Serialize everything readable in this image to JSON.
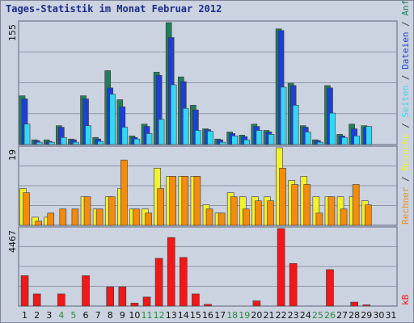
{
  "chart_data": {
    "type": "bar",
    "title": "Tages-Statistik im Monat Februar 2012",
    "categories": [
      "1",
      "2",
      "3",
      "4",
      "5",
      "6",
      "7",
      "8",
      "9",
      "10",
      "11",
      "12",
      "13",
      "14",
      "15",
      "16",
      "17",
      "18",
      "19",
      "20",
      "21",
      "22",
      "23",
      "24",
      "25",
      "26",
      "27",
      "28",
      "29",
      "30",
      "31"
    ],
    "weekend_days": [
      "4",
      "5",
      "11",
      "12",
      "18",
      "19",
      "25",
      "26"
    ],
    "panels": [
      {
        "name": "requests",
        "ymax_label": "155",
        "ylim": [
          0,
          155
        ],
        "series": [
          {
            "name": "Anfragen",
            "color": "#1e7f5c",
            "values": [
              62,
              6,
              6,
              24,
              7,
              62,
              9,
              94,
              57,
              11,
              26,
              92,
              155,
              86,
              50,
              20,
              7,
              16,
              12,
              26,
              18,
              147,
              78,
              24,
              6,
              75,
              13,
              26,
              24,
              0,
              0
            ]
          },
          {
            "name": "Dateien",
            "color": "#1c3fd6",
            "values": [
              58,
              5,
              4,
              22,
              6,
              58,
              7,
              72,
              48,
              9,
              23,
              88,
              136,
              80,
              44,
              19,
              6,
              14,
              10,
              23,
              16,
              145,
              75,
              22,
              5,
              72,
              11,
              20,
              22,
              0,
              0
            ]
          },
          {
            "name": "Seiten",
            "color": "#33d6f5",
            "values": [
              26,
              3,
              3,
              9,
              3,
              24,
              4,
              64,
              22,
              7,
              14,
              32,
              76,
              46,
              18,
              17,
              3,
              11,
              6,
              18,
              13,
              73,
              50,
              16,
              3,
              40,
              9,
              11,
              23,
              0,
              0
            ]
          }
        ]
      },
      {
        "name": "visits",
        "ymax_label": "19",
        "ylim": [
          0,
          19
        ],
        "series": [
          {
            "name": "Besuche",
            "color": "#f2f22a",
            "values": [
              9,
              2,
              2,
              0,
              0,
              7,
              4,
              7,
              9,
              4,
              4,
              14,
              12,
              12,
              12,
              5,
              3,
              8,
              7,
              7,
              7,
              19,
              11,
              12,
              7,
              7,
              7,
              7,
              6,
              0,
              0
            ]
          },
          {
            "name": "Rechner",
            "color": "#f28c0f",
            "values": [
              8,
              1,
              3,
              4,
              4,
              7,
              4,
              7,
              16,
              4,
              3,
              9,
              12,
              12,
              12,
              4,
              3,
              7,
              4,
              6,
              6,
              14,
              10,
              10,
              3,
              7,
              4,
              10,
              5,
              0,
              0
            ]
          }
        ]
      },
      {
        "name": "traffic",
        "ymax_label": "4467",
        "ylim": [
          0,
          4467
        ],
        "series": [
          {
            "name": "kB",
            "color": "#f01818",
            "values": [
              1750,
              700,
              0,
              700,
              0,
              1750,
              0,
              1100,
              1100,
              170,
              520,
              2750,
              3950,
              2800,
              700,
              100,
              0,
              0,
              0,
              300,
              0,
              4467,
              2450,
              0,
              0,
              2100,
              0,
              230,
              70,
              0,
              0
            ]
          }
        ]
      }
    ],
    "side_label": [
      "Rechner",
      " / ",
      "Besuche",
      " / ",
      "Seiten",
      " / ",
      "Dateien",
      " / ",
      "Anfragen"
    ],
    "side_label_colors": [
      "#f28c0f",
      "#3a3a3a",
      "#f2f22a",
      "#3a3a3a",
      "#33d6f5",
      "#3a3a3a",
      "#1c3fd6",
      "#3a3a3a",
      "#1e7f5c"
    ],
    "traffic_unit_label": "kB",
    "colors": {
      "weekday_tick": "#111111",
      "weekend_tick": "#2a8a3c",
      "background": "#cbd2e0"
    }
  }
}
